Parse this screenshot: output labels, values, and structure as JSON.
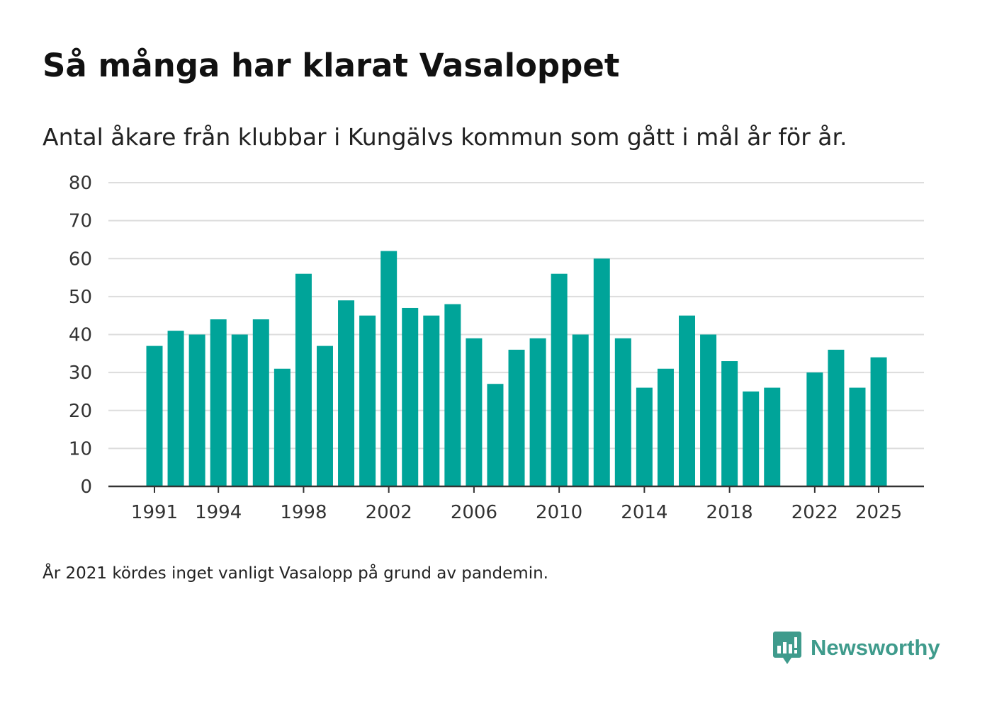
{
  "header": {
    "title": "Så många har klarat Vasaloppet",
    "subtitle": "Antal åkare från klubbar i Kungälvs kommun som gått i mål år för år."
  },
  "footer": {
    "note": "År 2021 kördes inget vanligt Vasalopp på grund av pandemin.",
    "brand": "Newsworthy",
    "brand_icon": "bar-chart-badge-icon"
  },
  "colors": {
    "bar": "#00a499",
    "grid": "#dddddd",
    "axis": "#333333",
    "brand": "#3f9b8c"
  },
  "chart_data": {
    "type": "bar",
    "title": "Så många har klarat Vasaloppet",
    "subtitle": "Antal åkare från klubbar i Kungälvs kommun som gått i mål år för år.",
    "xlabel": "",
    "ylabel": "",
    "ylim": [
      0,
      80
    ],
    "yticks": [
      0,
      10,
      20,
      30,
      40,
      50,
      60,
      70,
      80
    ],
    "x_tick_labels": [
      "1991",
      "1994",
      "1998",
      "2002",
      "2006",
      "2010",
      "2014",
      "2018",
      "2022",
      "2025"
    ],
    "grid": true,
    "legend": "none",
    "categories": [
      1991,
      1992,
      1993,
      1994,
      1995,
      1996,
      1997,
      1998,
      1999,
      2000,
      2001,
      2002,
      2003,
      2004,
      2005,
      2006,
      2007,
      2008,
      2009,
      2010,
      2011,
      2012,
      2013,
      2014,
      2015,
      2016,
      2017,
      2018,
      2019,
      2020,
      2021,
      2022,
      2023,
      2024,
      2025
    ],
    "values": [
      37,
      41,
      40,
      44,
      40,
      44,
      31,
      56,
      37,
      49,
      45,
      62,
      47,
      45,
      48,
      39,
      27,
      36,
      39,
      56,
      40,
      60,
      39,
      26,
      31,
      45,
      40,
      33,
      25,
      26,
      null,
      30,
      36,
      26,
      34
    ]
  }
}
